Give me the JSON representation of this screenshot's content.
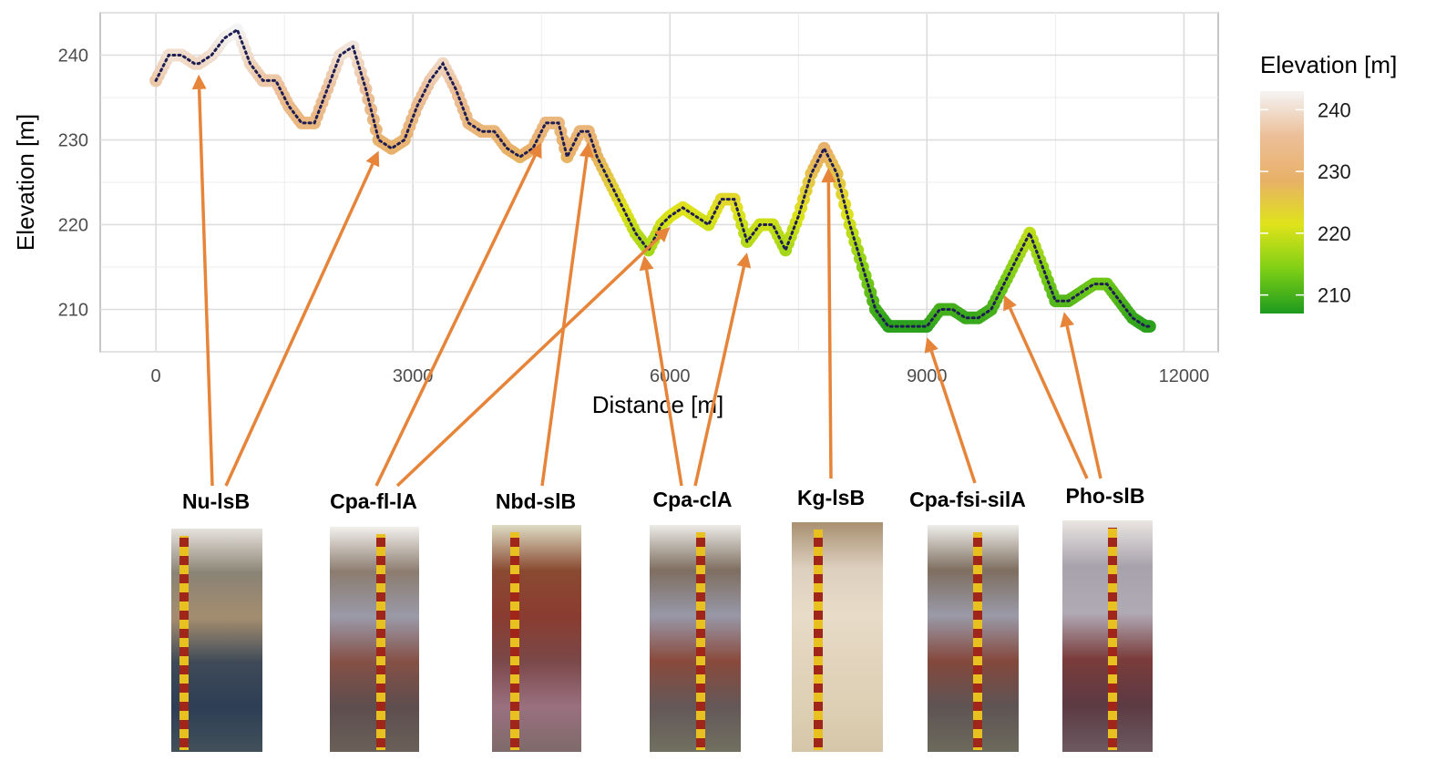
{
  "chart_data": {
    "type": "line",
    "xlabel": "Distance [m]",
    "ylabel": "Elevation [m]",
    "xlim": [
      -650,
      12400
    ],
    "ylim": [
      205,
      245
    ],
    "xticks": [
      0,
      3000,
      6000,
      9000,
      12000
    ],
    "xtick_labels": [
      "0",
      "3000",
      "6000",
      "9000",
      "12000"
    ],
    "yticks": [
      210,
      220,
      230,
      240
    ],
    "ytick_labels": [
      "210",
      "220",
      "230",
      "240"
    ],
    "grid": true,
    "series": [
      {
        "x": [
          0,
          150,
          300,
          450,
          500,
          650,
          800,
          950,
          1100,
          1250,
          1400,
          1550,
          1700,
          1850,
          2000,
          2150,
          2300,
          2450,
          2600,
          2750,
          2900,
          3050,
          3200,
          3350,
          3500,
          3650,
          3800,
          3950,
          4100,
          4250,
          4400,
          4550,
          4700,
          4800,
          4950,
          5050,
          5150,
          5300,
          5450,
          5600,
          5750,
          5900,
          6000,
          6150,
          6300,
          6450,
          6600,
          6750,
          6900,
          7050,
          7200,
          7350,
          7500,
          7650,
          7800,
          7950,
          8100,
          8250,
          8400,
          8550,
          8700,
          8850,
          9000,
          9150,
          9300,
          9450,
          9600,
          9750,
          9900,
          10050,
          10200,
          10350,
          10500,
          10650,
          10800,
          10950,
          11100,
          11250,
          11400,
          11550,
          11600
        ],
        "y": [
          237,
          240,
          240,
          239,
          239,
          240,
          242,
          243,
          239,
          237,
          237,
          234,
          232,
          232,
          236,
          240,
          241,
          236,
          230,
          229,
          230,
          234,
          237,
          239,
          236,
          232,
          231,
          231,
          229,
          228,
          229,
          232,
          232,
          228,
          231,
          231,
          228,
          225,
          222,
          219,
          217,
          220,
          221,
          222,
          221,
          220,
          223,
          223,
          218,
          220,
          220,
          217,
          221,
          226,
          229,
          226,
          220,
          215,
          210,
          208,
          208,
          208,
          208,
          210,
          210,
          209,
          209,
          210,
          213,
          216,
          219,
          215,
          211,
          211,
          212,
          213,
          213,
          211,
          209,
          208,
          208
        ],
        "color_scale": "elevation"
      }
    ],
    "legend": {
      "title": "Elevation [m]",
      "placement": "right",
      "ticks": [
        210,
        220,
        230,
        240
      ],
      "tick_labels": [
        "210",
        "220",
        "230",
        "240"
      ],
      "range": [
        207,
        243
      ],
      "colors": [
        "#1e9a1e",
        "#7fcf16",
        "#dfe31a",
        "#e8b068",
        "#ecbf99",
        "#f4f4f4"
      ]
    },
    "annotations": [
      {
        "label": "Nu-lsB",
        "points_to_x": [
          500,
          2600
        ]
      },
      {
        "label": "Cpa-fl-lA",
        "points_to_x": [
          4500,
          6000
        ]
      },
      {
        "label": "Nbd-slB",
        "points_to_x": [
          5050
        ]
      },
      {
        "label": "Cpa-clA",
        "points_to_x": [
          5700,
          6900
        ]
      },
      {
        "label": "Kg-lsB",
        "points_to_x": [
          7850
        ]
      },
      {
        "label": "Cpa-fsi-silA",
        "points_to_x": [
          9000
        ]
      },
      {
        "label": "Pho-slB",
        "points_to_x": [
          9900,
          10600
        ]
      }
    ]
  },
  "profiles": [
    {
      "label": "Nu-lsB",
      "colors": [
        "#e6e2dc",
        "#8a8375",
        "#a48d6f",
        "#3e4a58",
        "#2e3e55",
        "#42505a"
      ]
    },
    {
      "label": "Cpa-fl-lA",
      "colors": [
        "#f2f0ec",
        "#8c7c70",
        "#9a9aa8",
        "#855046",
        "#5e4e4e",
        "#6a6058"
      ]
    },
    {
      "label": "Nbd-slB",
      "colors": [
        "#dedcc4",
        "#8a4a32",
        "#8a3c30",
        "#7a4848",
        "#9a7080",
        "#7e6a6a"
      ]
    },
    {
      "label": "Cpa-clA",
      "colors": [
        "#ecebe6",
        "#7e6e60",
        "#9898a8",
        "#8a4a3c",
        "#645858",
        "#707060"
      ]
    },
    {
      "label": "Kg-lsB",
      "colors": [
        "#a89070",
        "#dccfbe",
        "#e8dcc8",
        "#e2d4bd",
        "#ddd0b4",
        "#d6c6a8"
      ]
    },
    {
      "label": "Cpa-fsi-silA",
      "colors": [
        "#efeeea",
        "#7e6e60",
        "#9a9aa8",
        "#84483c",
        "#5e5454",
        "#6c6a5c"
      ]
    },
    {
      "label": "Pho-slB",
      "colors": [
        "#eae6e2",
        "#a8a2ac",
        "#b0aab6",
        "#7a3c3a",
        "#5c3a44",
        "#6c5a60"
      ]
    }
  ]
}
